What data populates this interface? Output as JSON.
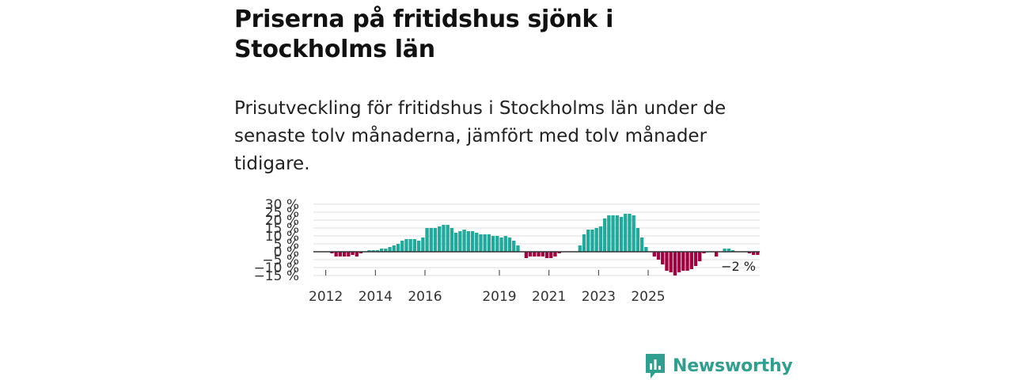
{
  "header": {
    "title": "Priserna på fritidshus sjönk i Stockholms län",
    "subtitle": "Prisutveckling för fritidshus i Stockholms län under de senaste tolv månaderna, jämfört med tolv månader tidigare."
  },
  "brand": {
    "name": "Newsworthy",
    "color": "#2f9f8f"
  },
  "colors": {
    "positive": "#21a99b",
    "negative": "#a3003f",
    "grid": "#dddddd",
    "zero": "#333333"
  },
  "chart_data": {
    "type": "bar",
    "title": "Priserna på fritidshus sjönk i Stockholms län",
    "ylabel": "",
    "xlabel": "",
    "ylim": [
      -15,
      30
    ],
    "y_ticks": [
      30,
      25,
      20,
      15,
      10,
      5,
      0,
      -5,
      -10,
      -15
    ],
    "y_tick_labels": [
      "30 %",
      "25 %",
      "20 %",
      "15 %",
      "10 %",
      "5 %",
      "0 %",
      "−5 %",
      "−10 %",
      "−15 %"
    ],
    "x_ticks": [
      2012,
      2014,
      2016,
      2019,
      2021,
      2023,
      2025
    ],
    "x_start": 2011.5,
    "step": 0.1666667,
    "last_value_label": "−2 %",
    "values": [
      0,
      0,
      0,
      0,
      -1,
      -3,
      -3,
      -3,
      -3,
      -2,
      -3,
      -1,
      0,
      1,
      1,
      1,
      2,
      2,
      3,
      4,
      5,
      7,
      8,
      8,
      8,
      7,
      9,
      15,
      15,
      15,
      16,
      17,
      17,
      15,
      12,
      13,
      14,
      13,
      13,
      12,
      11,
      11,
      11,
      10,
      10,
      9,
      10,
      9,
      7,
      4,
      0,
      -4,
      -3,
      -3,
      -3,
      -3,
      -4,
      -4,
      -3,
      -1,
      0,
      0,
      0,
      0,
      4,
      11,
      14,
      14,
      15,
      16,
      21,
      23,
      23,
      23,
      22,
      24,
      24,
      23,
      15,
      9,
      3,
      0,
      -3,
      -5,
      -8,
      -12,
      -13,
      -15,
      -13,
      -12,
      -12,
      -11,
      -9,
      -6,
      -1,
      0,
      0,
      -3,
      0,
      2,
      2,
      1,
      0,
      0,
      0,
      -1,
      -2,
      -2
    ]
  }
}
